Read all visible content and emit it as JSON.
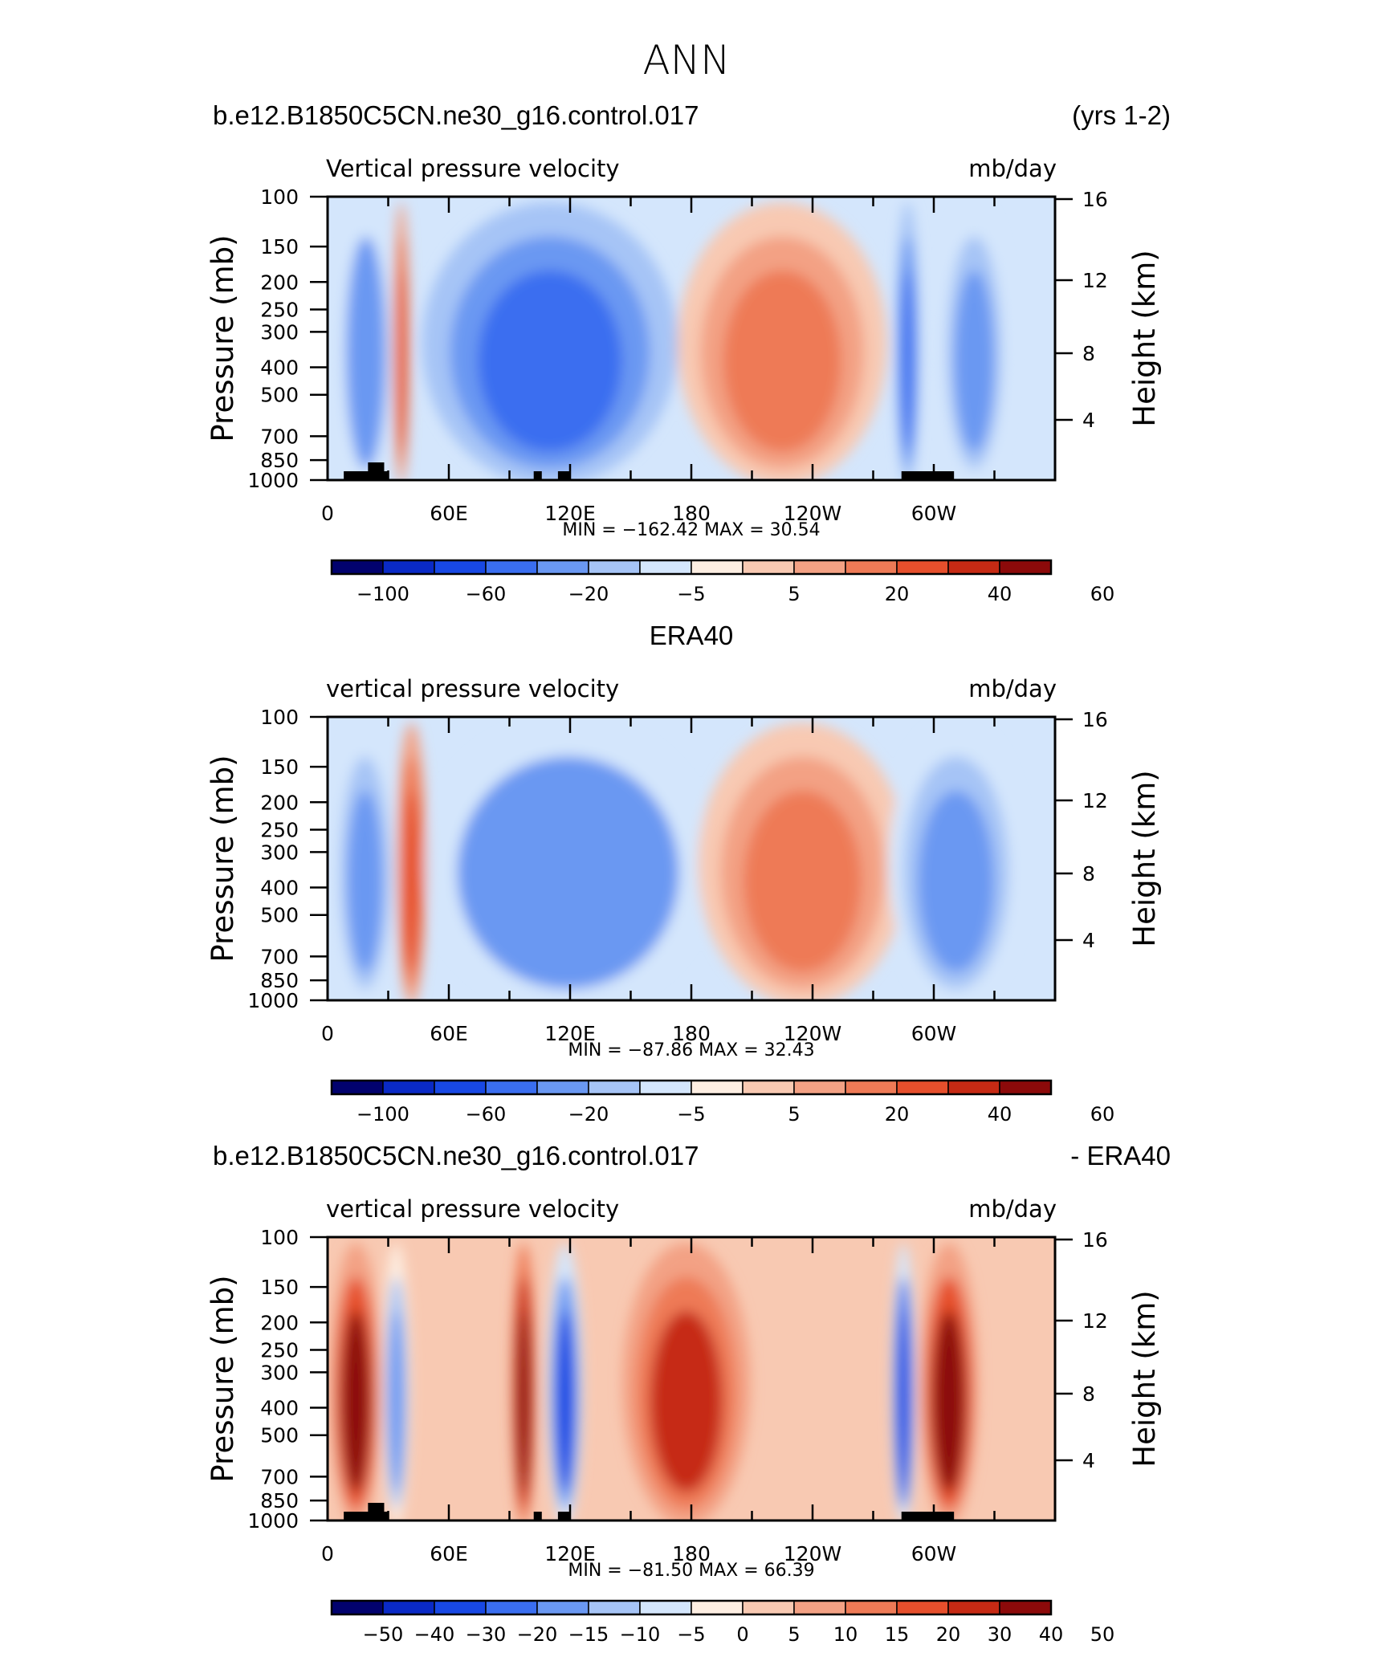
{
  "page": {
    "title": "ANN"
  },
  "panels": [
    {
      "left_title": "b.e12.B1850C5CN.ne30_g16.control.017",
      "right_title": "(yrs 1-2)",
      "center_title": "",
      "variable": "Vertical pressure velocity",
      "units": "mb/day",
      "stats": "MIN =  −162.42   MAX =   30.54",
      "colorbar": {
        "colors": [
          "#02026e",
          "#0a2ac6",
          "#1848e4",
          "#3a6ef0",
          "#6a98f2",
          "#a6c4f6",
          "#d4e6fc",
          "#fdeee2",
          "#f8c9b2",
          "#f3a184",
          "#ee7a56",
          "#e64f2c",
          "#c62a14",
          "#8c0a0a"
        ],
        "labels": [
          "−100",
          "−60",
          "−20",
          "−5",
          "5",
          "20",
          "40",
          "60"
        ],
        "label_edges": [
          1,
          3,
          5,
          7,
          9,
          11,
          13,
          15
        ]
      },
      "chart_data": {
        "type": "heatmap",
        "x_ticks": [
          "0",
          "60E",
          "120E",
          "180",
          "120W",
          "60W"
        ],
        "y_ticks_left": [
          "100",
          "150",
          "200",
          "250",
          "300",
          "400",
          "500",
          "700",
          "850",
          "1000"
        ],
        "y_ticks_right": [
          "16",
          "12",
          "8",
          "4"
        ],
        "ylabel_left": "Pressure (mb)",
        "ylabel_right": "Height (km)",
        "levels": [
          -100,
          -80,
          -60,
          -40,
          -20,
          -10,
          -5,
          0,
          5,
          10,
          20,
          30,
          40,
          60
        ],
        "min": -162.42,
        "max": 30.54,
        "features": [
          {
            "lon0": 8,
            "lon1": 30,
            "w": -40
          },
          {
            "lon0": 33,
            "lon1": 40,
            "w": 20
          },
          {
            "lon0": 55,
            "lon1": 165,
            "w": -55
          },
          {
            "lon0": 180,
            "lon1": 270,
            "w": 15
          },
          {
            "lon0": 282,
            "lon1": 292,
            "w": -60
          },
          {
            "lon0": 305,
            "lon1": 335,
            "w": -25
          }
        ]
      }
    },
    {
      "left_title": "",
      "right_title": "",
      "center_title": "ERA40",
      "variable": "vertical pressure velocity",
      "units": "mb/day",
      "stats": "MIN =  −87.86   MAX =   32.43",
      "colorbar": {
        "colors": [
          "#02026e",
          "#0a2ac6",
          "#1848e4",
          "#3a6ef0",
          "#6a98f2",
          "#a6c4f6",
          "#d4e6fc",
          "#fdeee2",
          "#f8c9b2",
          "#f3a184",
          "#ee7a56",
          "#e64f2c",
          "#c62a14",
          "#8c0a0a"
        ],
        "labels": [
          "−100",
          "−60",
          "−20",
          "−5",
          "5",
          "20",
          "40",
          "60"
        ],
        "label_edges": [
          1,
          3,
          5,
          7,
          9,
          11,
          13,
          15
        ]
      },
      "chart_data": {
        "type": "heatmap",
        "x_ticks": [
          "0",
          "60E",
          "120E",
          "180",
          "120W",
          "60W"
        ],
        "y_ticks_left": [
          "100",
          "150",
          "200",
          "250",
          "300",
          "400",
          "500",
          "700",
          "850",
          "1000"
        ],
        "y_ticks_right": [
          "16",
          "12",
          "8",
          "4"
        ],
        "ylabel_left": "Pressure (mb)",
        "ylabel_right": "Height (km)",
        "levels": [
          -100,
          -80,
          -60,
          -40,
          -20,
          -10,
          -5,
          0,
          5,
          10,
          20,
          30,
          40,
          60
        ],
        "min": -87.86,
        "max": 32.43,
        "features": [
          {
            "lon0": 5,
            "lon1": 32,
            "w": -35
          },
          {
            "lon0": 35,
            "lon1": 48,
            "w": 25
          },
          {
            "lon0": 58,
            "lon1": 180,
            "w": -40
          },
          {
            "lon0": 190,
            "lon1": 280,
            "w": 15
          },
          {
            "lon0": 282,
            "lon1": 340,
            "w": -30
          }
        ]
      }
    },
    {
      "left_title": "b.e12.B1850C5CN.ne30_g16.control.017",
      "right_title": "- ERA40",
      "center_title": "",
      "variable": "vertical pressure velocity",
      "units": "mb/day",
      "stats": "MIN =  −81.50   MAX =   66.39",
      "colorbar": {
        "colors": [
          "#02026e",
          "#0a2ac6",
          "#1848e4",
          "#3a6ef0",
          "#6a98f2",
          "#a6c4f6",
          "#d4e6fc",
          "#fdeee2",
          "#f8c9b2",
          "#f3a184",
          "#ee7a56",
          "#e64f2c",
          "#c62a14",
          "#8c0a0a"
        ],
        "labels": [
          "−50",
          "−40",
          "−30",
          "−20",
          "−15",
          "−10",
          "−5",
          "0",
          "5",
          "10",
          "15",
          "20",
          "30",
          "40",
          "50"
        ],
        "label_edges": [
          1,
          2,
          3,
          4,
          5,
          6,
          7,
          8,
          9,
          10,
          11,
          12,
          13,
          14,
          15
        ]
      },
      "chart_data": {
        "type": "heatmap",
        "x_ticks": [
          "0",
          "60E",
          "120E",
          "180",
          "120W",
          "60W"
        ],
        "y_ticks_left": [
          "100",
          "150",
          "200",
          "250",
          "300",
          "400",
          "500",
          "700",
          "850",
          "1000"
        ],
        "y_ticks_right": [
          "16",
          "12",
          "8",
          "4"
        ],
        "ylabel_left": "Pressure (mb)",
        "ylabel_right": "Height (km)",
        "levels": [
          -50,
          -40,
          -30,
          -20,
          -15,
          -10,
          -5,
          0,
          5,
          10,
          15,
          20,
          30,
          40,
          50
        ],
        "min": -81.5,
        "max": 66.39,
        "features": [
          {
            "lon0": 3,
            "lon1": 25,
            "w": 30
          },
          {
            "lon0": 28,
            "lon1": 40,
            "w": -20
          },
          {
            "lon0": 92,
            "lon1": 102,
            "w": 40
          },
          {
            "lon0": 110,
            "lon1": 125,
            "w": -35
          },
          {
            "lon0": 150,
            "lon1": 205,
            "w": 25
          },
          {
            "lon0": 280,
            "lon1": 290,
            "w": -40
          },
          {
            "lon0": 295,
            "lon1": 320,
            "w": 30
          }
        ]
      }
    }
  ]
}
